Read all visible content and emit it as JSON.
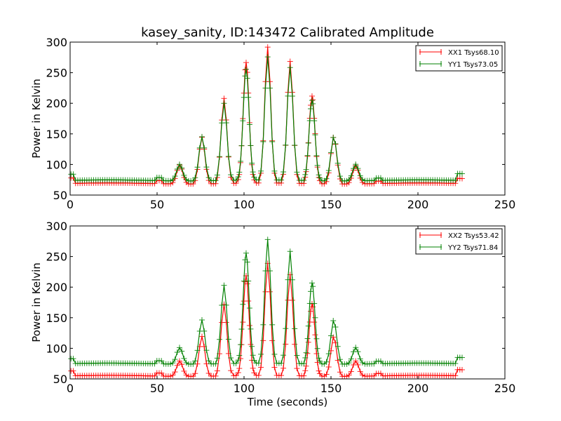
{
  "chart_data": [
    {
      "type": "line",
      "title": "kasey_sanity, ID:143472 Calibrated Amplitude",
      "xlabel": "",
      "ylabel": "Power in Kelvin",
      "xlim": [
        0,
        250
      ],
      "ylim": [
        50,
        300
      ],
      "xticks": [
        "0",
        "50",
        "100",
        "150",
        "200",
        "250"
      ],
      "yticks": [
        "50",
        "100",
        "150",
        "200",
        "250",
        "300"
      ],
      "grid": false,
      "legend_position": "top-right",
      "marker": "+",
      "series": [
        {
          "name": "XX1 Tsys68.10",
          "color": "#ff0000",
          "peaks": [
            31,
            76,
            139,
            197,
            222,
            199,
            143,
            77,
            30
          ],
          "baseline": 69,
          "start": 78,
          "end_bump": 77
        },
        {
          "name": "YY1 Tsys73.05",
          "color": "#008000",
          "peaks": [
            27,
            72,
            126,
            181,
            201,
            184,
            131,
            72,
            27
          ],
          "baseline": 74,
          "start": 84,
          "end_bump": 85
        }
      ]
    },
    {
      "type": "line",
      "title": "",
      "xlabel": "Time (seconds)",
      "ylabel": "Power in Kelvin",
      "xlim": [
        0,
        250
      ],
      "ylim": [
        50,
        300
      ],
      "xticks": [
        "0",
        "50",
        "100",
        "150",
        "200",
        "250"
      ],
      "yticks": [
        "50",
        "100",
        "150",
        "200",
        "250",
        "300"
      ],
      "grid": false,
      "legend_position": "top-right",
      "marker": "+",
      "series": [
        {
          "name": "XX2 Tsys53.42",
          "color": "#ff0000",
          "peaks": [
            25,
            65,
            117,
            163,
            183,
            165,
            118,
            65,
            25
          ],
          "baseline": 55,
          "start": 63,
          "end_bump": 65
        },
        {
          "name": "YY2 Tsys71.84",
          "color": "#008000",
          "peaks": [
            27,
            72,
            128,
            180,
            202,
            183,
            132,
            72,
            27
          ],
          "baseline": 75,
          "start": 83,
          "end_bump": 85
        }
      ]
    }
  ],
  "peak_centers": [
    63,
    75.8,
    88.5,
    101.2,
    113.6,
    126.5,
    139.1,
    151.6,
    164.2
  ],
  "peak_profile_offsets": [
    -3.9,
    -2.6,
    -1.3,
    0,
    1.3,
    2.6,
    3.9
  ],
  "peak_profile_factors": [
    0.07,
    0.31,
    0.75,
    1,
    0.75,
    0.31,
    0.07
  ],
  "sample_step": 1.3,
  "x_end": 226
}
